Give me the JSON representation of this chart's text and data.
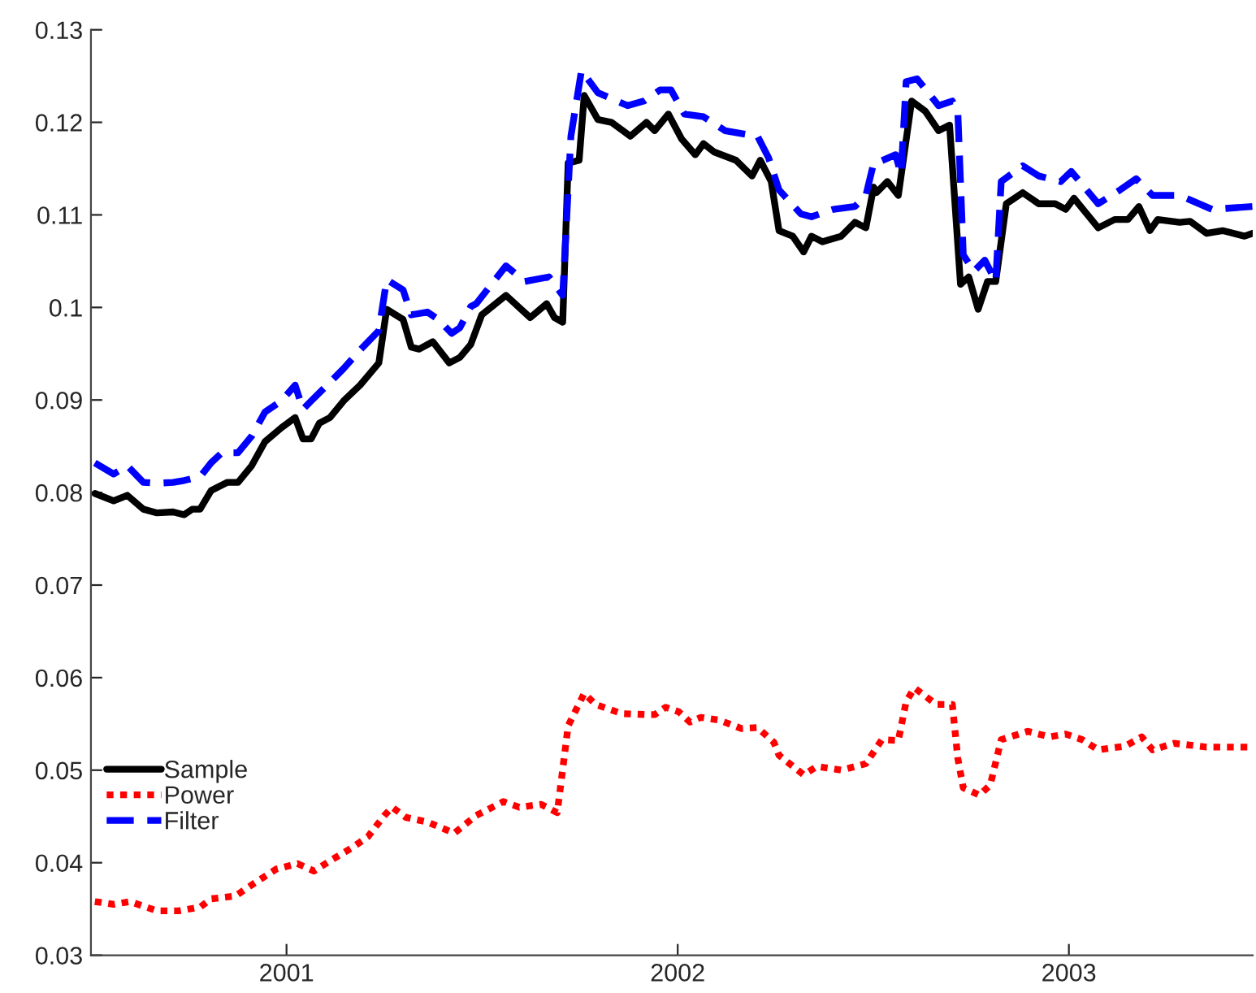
{
  "chart_data": {
    "type": "line",
    "xlim": [
      2000.5,
      2003.47
    ],
    "xticks": [
      2001,
      2002,
      2003
    ],
    "ylim": [
      0.03,
      0.13
    ],
    "yticks": [
      0.03,
      0.04,
      0.05,
      0.06,
      0.07,
      0.08,
      0.09,
      0.1,
      0.11,
      0.12,
      0.13
    ],
    "grid": false,
    "legend": "bottom left",
    "marker": "none",
    "series": [
      {
        "name": "Sample",
        "color": "#000000",
        "line_style": "solid",
        "x": [
          2000.51,
          2000.558,
          2000.593,
          2000.634,
          2000.669,
          2000.71,
          2000.738,
          2000.759,
          2000.779,
          2000.807,
          2000.849,
          2000.876,
          2000.911,
          2000.945,
          2000.987,
          2001.022,
          2001.042,
          2001.063,
          2001.084,
          2001.111,
          2001.146,
          2001.188,
          2001.236,
          2001.256,
          2001.298,
          2001.319,
          2001.339,
          2001.374,
          2001.416,
          2001.443,
          2001.471,
          2001.499,
          2001.561,
          2001.623,
          2001.665,
          2001.685,
          2001.706,
          2001.72,
          2001.748,
          2001.761,
          2001.796,
          2001.831,
          2001.879,
          2001.92,
          2001.941,
          2001.976,
          2002.01,
          2002.045,
          2002.066,
          2002.093,
          2002.149,
          2002.19,
          2002.211,
          2002.239,
          2002.259,
          2002.294,
          2002.322,
          2002.342,
          2002.37,
          2002.418,
          2002.453,
          2002.481,
          2002.501,
          2002.508,
          2002.536,
          2002.564,
          2002.598,
          2002.633,
          2002.667,
          2002.695,
          2002.723,
          2002.744,
          2002.768,
          2002.792,
          2002.813,
          2002.84,
          2002.882,
          2002.923,
          2002.965,
          2002.992,
          2003.013,
          2003.075,
          2003.117,
          2003.151,
          2003.179,
          2003.207,
          2003.227,
          2003.283,
          2003.31,
          2003.352,
          2003.393,
          2003.449,
          2003.469
        ],
        "values": [
          0.0799,
          0.0791,
          0.0797,
          0.0782,
          0.0778,
          0.0779,
          0.0776,
          0.0782,
          0.0782,
          0.0802,
          0.0811,
          0.0811,
          0.0829,
          0.0855,
          0.087,
          0.0881,
          0.0858,
          0.0858,
          0.0875,
          0.0881,
          0.0899,
          0.0916,
          0.094,
          0.0998,
          0.0987,
          0.0957,
          0.0955,
          0.0963,
          0.094,
          0.0946,
          0.096,
          0.0992,
          0.1013,
          0.0989,
          0.1004,
          0.0989,
          0.0984,
          0.1156,
          0.1159,
          0.1229,
          0.1203,
          0.12,
          0.1185,
          0.12,
          0.1191,
          0.1209,
          0.1182,
          0.1165,
          0.1177,
          0.1168,
          0.1159,
          0.1142,
          0.1159,
          0.1136,
          0.1083,
          0.1077,
          0.106,
          0.1077,
          0.1071,
          0.1077,
          0.1092,
          0.1086,
          0.113,
          0.1124,
          0.1136,
          0.1121,
          0.1223,
          0.1212,
          0.1191,
          0.1197,
          0.1025,
          0.1033,
          0.0998,
          0.1028,
          0.1028,
          0.1112,
          0.1124,
          0.1112,
          0.1112,
          0.1106,
          0.1118,
          0.1086,
          0.1095,
          0.1095,
          0.1109,
          0.1083,
          0.1095,
          0.1092,
          0.1093,
          0.108,
          0.1083,
          0.1077,
          0.108
        ]
      },
      {
        "name": "Power",
        "color": "#ff0000",
        "line_style": "dotted",
        "x": [
          2000.51,
          2000.558,
          2000.6,
          2000.669,
          2000.724,
          2000.779,
          2000.807,
          2000.869,
          2000.918,
          2000.973,
          2001.028,
          2001.07,
          2001.111,
          2001.167,
          2001.208,
          2001.25,
          2001.27,
          2001.305,
          2001.36,
          2001.429,
          2001.485,
          2001.554,
          2001.595,
          2001.651,
          2001.692,
          2001.72,
          2001.761,
          2001.79,
          2001.858,
          2001.927,
          2001.941,
          2001.969,
          2002.003,
          2002.031,
          2002.059,
          2002.107,
          2002.163,
          2002.204,
          2002.246,
          2002.259,
          2002.322,
          2002.356,
          2002.418,
          2002.481,
          2002.522,
          2002.564,
          2002.584,
          2002.605,
          2002.661,
          2002.702,
          2002.716,
          2002.73,
          2002.771,
          2002.799,
          2002.827,
          2002.895,
          2002.951,
          2002.992,
          2003.034,
          2003.075,
          2003.144,
          2003.186,
          2003.214,
          2003.269,
          2003.352,
          2003.469
        ],
        "values": [
          0.0358,
          0.0355,
          0.0358,
          0.0348,
          0.0348,
          0.0352,
          0.0361,
          0.0364,
          0.0378,
          0.0393,
          0.0399,
          0.0391,
          0.0402,
          0.0416,
          0.0428,
          0.0451,
          0.046,
          0.0449,
          0.0444,
          0.0432,
          0.0451,
          0.0466,
          0.046,
          0.0463,
          0.0454,
          0.0548,
          0.0583,
          0.0571,
          0.0561,
          0.056,
          0.056,
          0.0568,
          0.0563,
          0.0552,
          0.0557,
          0.0554,
          0.0545,
          0.0546,
          0.053,
          0.0516,
          0.0495,
          0.0504,
          0.05,
          0.0507,
          0.0533,
          0.0532,
          0.0574,
          0.0589,
          0.0571,
          0.0571,
          0.0513,
          0.0481,
          0.0473,
          0.0484,
          0.0533,
          0.0542,
          0.0536,
          0.0539,
          0.0533,
          0.0522,
          0.0526,
          0.0536,
          0.0522,
          0.0529,
          0.0525,
          0.0525
        ]
      },
      {
        "name": "Filter",
        "color": "#0000ff",
        "line_style": "dashed",
        "x": [
          2000.51,
          2000.558,
          2000.593,
          2000.634,
          2000.669,
          2000.71,
          2000.738,
          2000.779,
          2000.807,
          2000.835,
          2000.876,
          2000.911,
          2000.945,
          2000.987,
          2001.022,
          2001.042,
          2001.063,
          2001.111,
          2001.146,
          2001.188,
          2001.236,
          2001.256,
          2001.298,
          2001.319,
          2001.36,
          2001.388,
          2001.422,
          2001.443,
          2001.471,
          2001.485,
          2001.561,
          2001.609,
          2001.671,
          2001.706,
          2001.727,
          2001.754,
          2001.796,
          2001.872,
          2001.914,
          2001.955,
          2001.983,
          2002.017,
          2002.066,
          2002.121,
          2002.204,
          2002.232,
          2002.259,
          2002.315,
          2002.342,
          2002.398,
          2002.453,
          2002.481,
          2002.501,
          2002.508,
          2002.557,
          2002.571,
          2002.584,
          2002.612,
          2002.667,
          2002.702,
          2002.716,
          2002.73,
          2002.757,
          2002.785,
          2002.813,
          2002.827,
          2002.882,
          2002.923,
          2002.979,
          2003.006,
          2003.075,
          2003.131,
          2003.172,
          2003.214,
          2003.283,
          2003.366,
          2003.469
        ],
        "values": [
          0.0832,
          0.082,
          0.0829,
          0.0811,
          0.081,
          0.0811,
          0.0813,
          0.0817,
          0.0832,
          0.0843,
          0.0843,
          0.0861,
          0.0887,
          0.0899,
          0.0916,
          0.089,
          0.0899,
          0.0919,
          0.0934,
          0.0954,
          0.0975,
          0.103,
          0.1019,
          0.0992,
          0.0995,
          0.0987,
          0.0972,
          0.0978,
          0.1001,
          0.1004,
          0.1045,
          0.1028,
          0.1033,
          0.1013,
          0.1185,
          0.1256,
          0.1232,
          0.1218,
          0.1223,
          0.1235,
          0.1235,
          0.1209,
          0.1206,
          0.1191,
          0.1185,
          0.1162,
          0.1127,
          0.1101,
          0.1098,
          0.1106,
          0.1109,
          0.1121,
          0.1156,
          0.1156,
          0.1165,
          0.1144,
          0.1244,
          0.1247,
          0.1218,
          0.1223,
          0.1212,
          0.1057,
          0.1039,
          0.1051,
          0.1028,
          0.1136,
          0.1153,
          0.1142,
          0.1136,
          0.1147,
          0.1112,
          0.1127,
          0.1139,
          0.1121,
          0.1121,
          0.1106,
          0.1109
        ]
      }
    ]
  }
}
